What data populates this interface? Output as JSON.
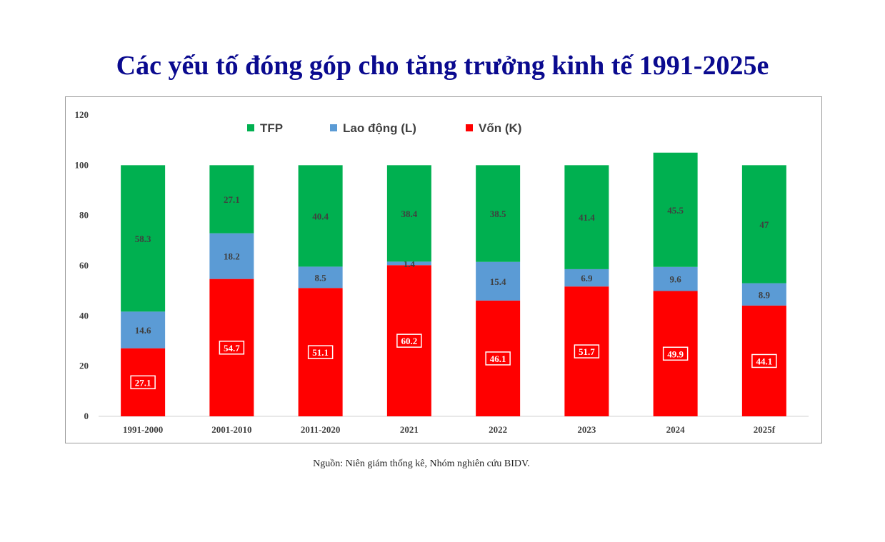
{
  "title": "Các yếu tố đóng góp cho tăng trưởng kinh tế 1991-2025e",
  "source_note": "Nguồn: Niên giám thống kê, Nhóm nghiên cứu BIDV.",
  "chart_data": {
    "type": "bar",
    "stacked": true,
    "title": "Các yếu tố đóng góp cho tăng trưởng kinh tế 1991-2025e",
    "xlabel": "",
    "ylabel": "",
    "ylim": [
      0,
      120
    ],
    "yticks": [
      0,
      20,
      40,
      60,
      80,
      100,
      120
    ],
    "grid": false,
    "legend_position": "top",
    "categories": [
      "1991-2000",
      "2001-2010",
      "2011-2020",
      "2021",
      "2022",
      "2023",
      "2024",
      "2025f"
    ],
    "series": [
      {
        "name": "Vốn (K)",
        "color": "#ff0000",
        "values": [
          27.1,
          54.7,
          51.1,
          60.2,
          46.1,
          51.7,
          49.9,
          44.1
        ],
        "label_style": "boxed-white"
      },
      {
        "name": "Lao động (L)",
        "color": "#5b9bd5",
        "values": [
          14.6,
          18.2,
          8.5,
          1.4,
          15.4,
          6.9,
          9.6,
          8.9
        ],
        "label_style": "plain-dark"
      },
      {
        "name": "TFP",
        "color": "#00b050",
        "values": [
          58.3,
          27.1,
          40.4,
          38.4,
          38.5,
          41.4,
          45.5,
          47
        ],
        "label_style": "plain-dark"
      }
    ],
    "legend_order": [
      "TFP",
      "Lao động (L)",
      "Vốn (K)"
    ]
  }
}
